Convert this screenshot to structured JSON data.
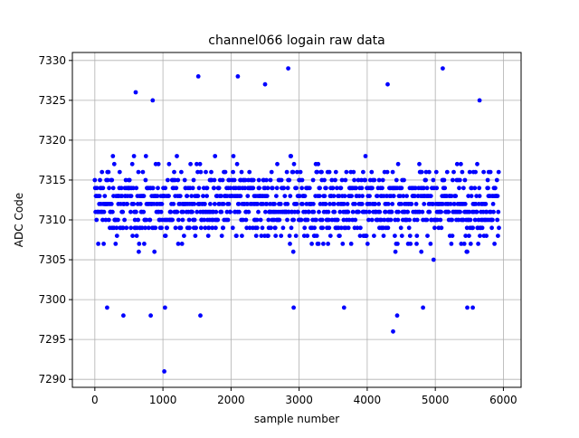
{
  "chart_data": {
    "type": "scatter",
    "title": "channel066 logain raw data",
    "xlabel": "sample number",
    "ylabel": "ADC Code",
    "xlim": [
      -330,
      6260
    ],
    "ylim": [
      7289,
      7331
    ],
    "xticks": [
      0,
      1000,
      2000,
      3000,
      4000,
      5000,
      6000
    ],
    "yticks": [
      7290,
      7295,
      7300,
      7305,
      7310,
      7315,
      7320,
      7325,
      7330
    ],
    "grid": true,
    "marker_color": "#0000ff",
    "n_samples": 5940,
    "y_main_band": [
      7301,
      7322
    ],
    "series": [
      {
        "values_note": "dense uniform band of integer ADC codes across all samples",
        "outliers": [
          {
            "x": 600,
            "y": 7326
          },
          {
            "x": 850,
            "y": 7325
          },
          {
            "x": 1520,
            "y": 7328
          },
          {
            "x": 2100,
            "y": 7328
          },
          {
            "x": 2500,
            "y": 7327
          },
          {
            "x": 2840,
            "y": 7329
          },
          {
            "x": 4300,
            "y": 7327
          },
          {
            "x": 5110,
            "y": 7329
          },
          {
            "x": 5650,
            "y": 7325
          },
          {
            "x": 1020,
            "y": 7291
          },
          {
            "x": 4380,
            "y": 7296
          },
          {
            "x": 4440,
            "y": 7298
          },
          {
            "x": 420,
            "y": 7298
          },
          {
            "x": 820,
            "y": 7298
          },
          {
            "x": 1550,
            "y": 7298
          },
          {
            "x": 1030,
            "y": 7299
          },
          {
            "x": 2920,
            "y": 7299
          },
          {
            "x": 3660,
            "y": 7299
          },
          {
            "x": 4820,
            "y": 7299
          },
          {
            "x": 5470,
            "y": 7299
          },
          {
            "x": 5550,
            "y": 7299
          },
          {
            "x": 180,
            "y": 7299
          }
        ]
      }
    ]
  }
}
